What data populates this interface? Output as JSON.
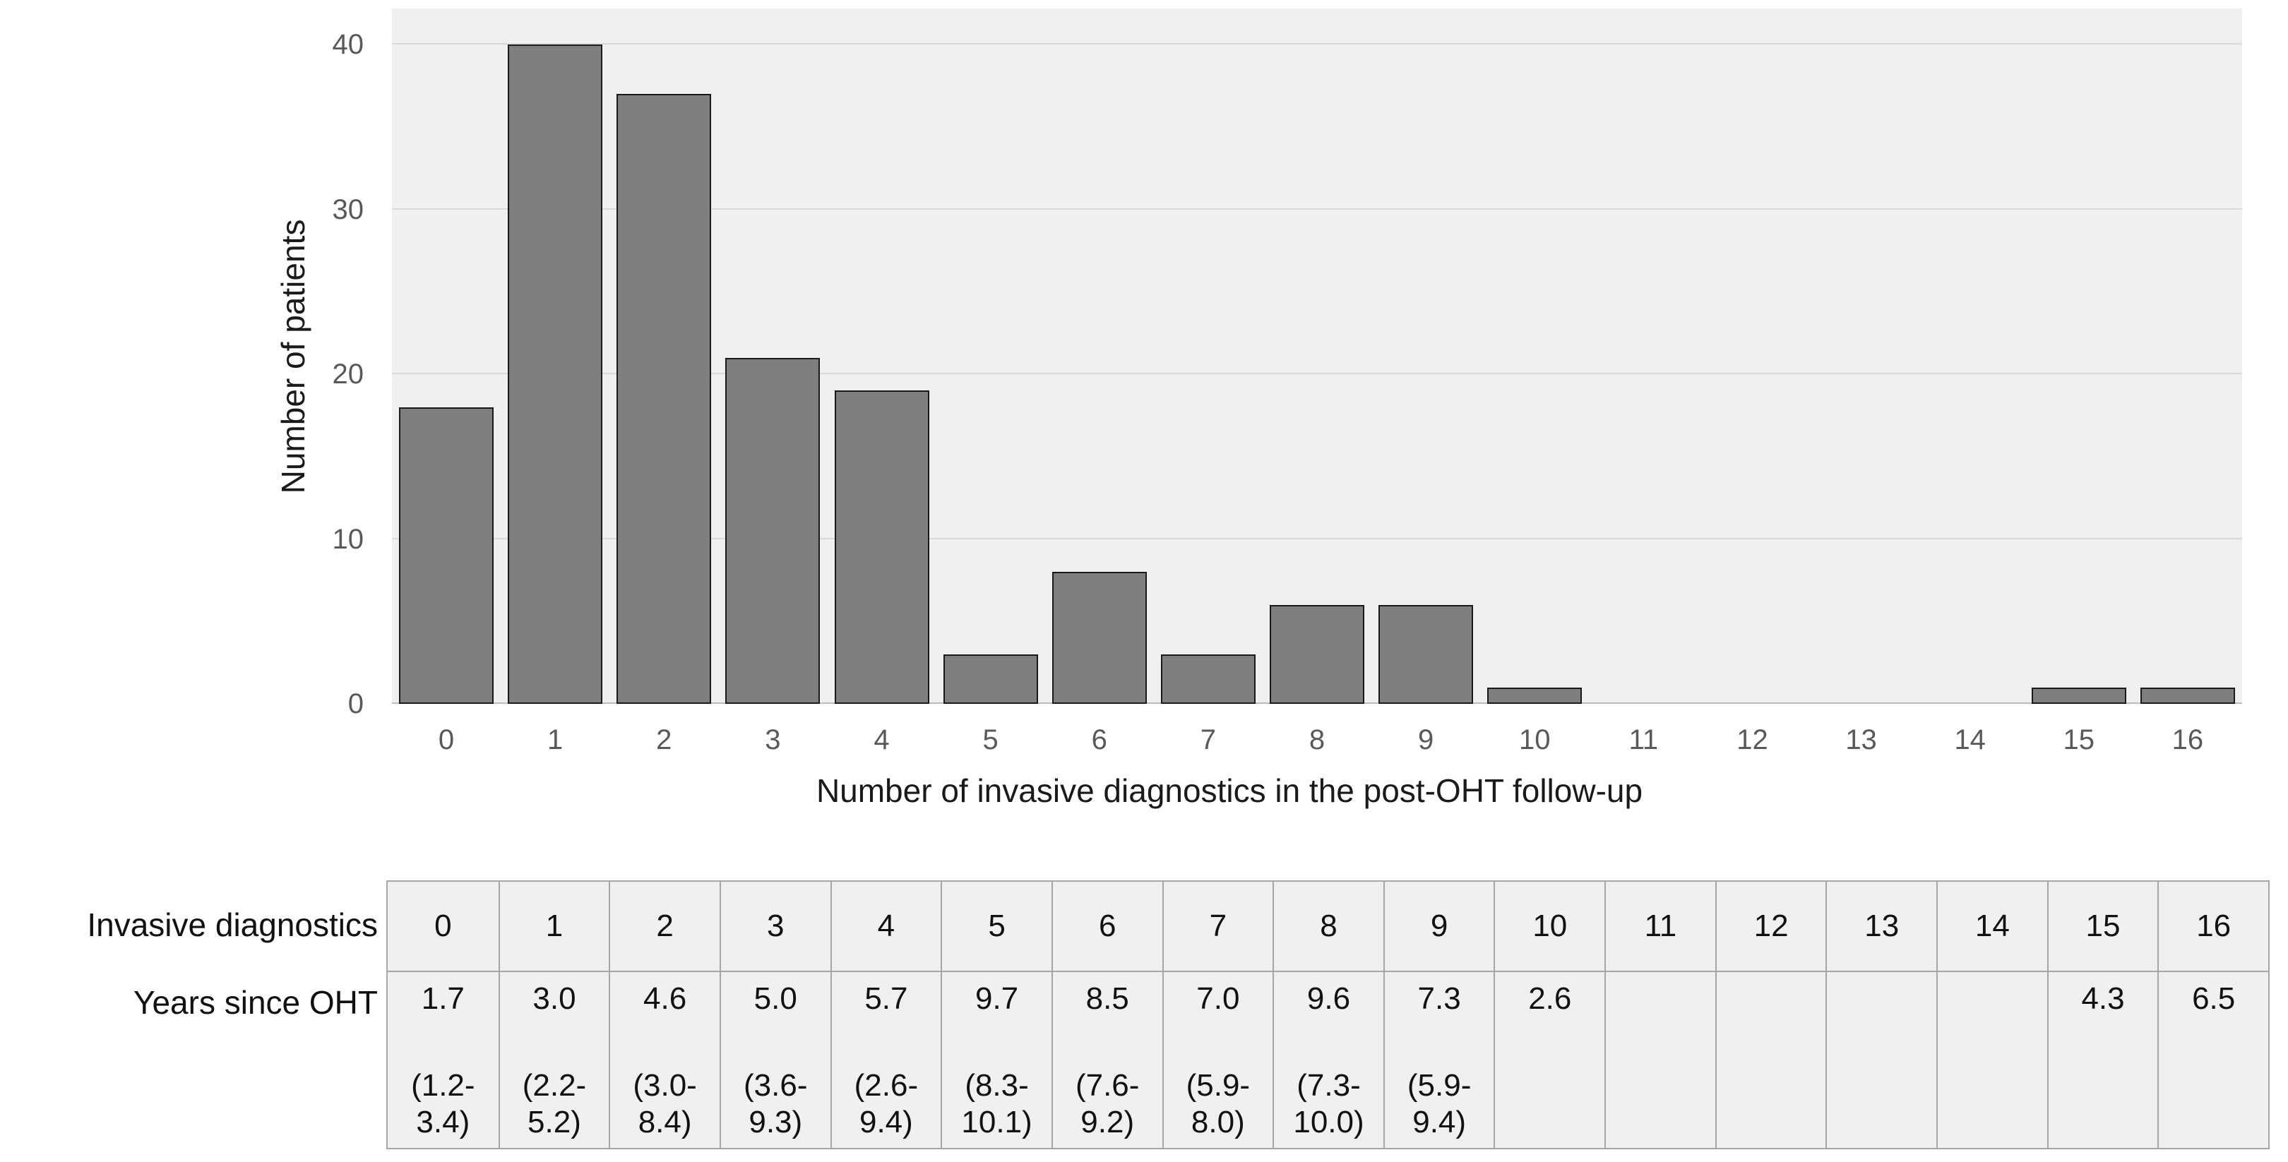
{
  "chart_data": {
    "type": "bar",
    "title": "",
    "categories": [
      "0",
      "1",
      "2",
      "3",
      "4",
      "5",
      "6",
      "7",
      "8",
      "9",
      "10",
      "11",
      "12",
      "13",
      "14",
      "15",
      "16"
    ],
    "values": [
      18,
      40,
      37,
      21,
      19,
      3,
      8,
      3,
      6,
      6,
      1,
      0,
      0,
      0,
      0,
      1,
      1
    ],
    "xlabel": "Number of invasive diagnostics in the post-OHT follow-up",
    "ylabel": "Number of patients",
    "ylim": [
      0,
      40
    ],
    "yticks": [
      0,
      10,
      20,
      30,
      40
    ],
    "grid": true,
    "legend": null,
    "bar_color": "#7f7f7f",
    "bar_border_color": "#1a1a1a",
    "plot_background": "#f0f0f0",
    "gridline_color": "#d9d9d9"
  },
  "table": {
    "row_labels": [
      "Invasive diagnostics",
      "Years since OHT"
    ],
    "columns": [
      {
        "diagnostics": "0",
        "median": "1.7",
        "range_lines": [
          "(1.2-",
          "3.4)"
        ]
      },
      {
        "diagnostics": "1",
        "median": "3.0",
        "range_lines": [
          "(2.2-",
          "5.2)"
        ]
      },
      {
        "diagnostics": "2",
        "median": "4.6",
        "range_lines": [
          "(3.0-",
          "8.4)"
        ]
      },
      {
        "diagnostics": "3",
        "median": "5.0",
        "range_lines": [
          "(3.6-",
          "9.3)"
        ]
      },
      {
        "diagnostics": "4",
        "median": "5.7",
        "range_lines": [
          "(2.6-",
          "9.4)"
        ]
      },
      {
        "diagnostics": "5",
        "median": "9.7",
        "range_lines": [
          "(8.3-",
          "10.1)"
        ]
      },
      {
        "diagnostics": "6",
        "median": "8.5",
        "range_lines": [
          "(7.6-",
          "9.2)"
        ]
      },
      {
        "diagnostics": "7",
        "median": "7.0",
        "range_lines": [
          "(5.9-",
          "8.0)"
        ]
      },
      {
        "diagnostics": "8",
        "median": "9.6",
        "range_lines": [
          "(7.3-",
          "10.0)"
        ]
      },
      {
        "diagnostics": "9",
        "median": "7.3",
        "range_lines": [
          "(5.9-",
          "9.4)"
        ]
      },
      {
        "diagnostics": "10",
        "median": "2.6",
        "range_lines": []
      },
      {
        "diagnostics": "11",
        "median": "",
        "range_lines": []
      },
      {
        "diagnostics": "12",
        "median": "",
        "range_lines": []
      },
      {
        "diagnostics": "13",
        "median": "",
        "range_lines": []
      },
      {
        "diagnostics": "14",
        "median": "",
        "range_lines": []
      },
      {
        "diagnostics": "15",
        "median": "4.3",
        "range_lines": []
      },
      {
        "diagnostics": "16",
        "median": "6.5",
        "range_lines": []
      }
    ]
  }
}
